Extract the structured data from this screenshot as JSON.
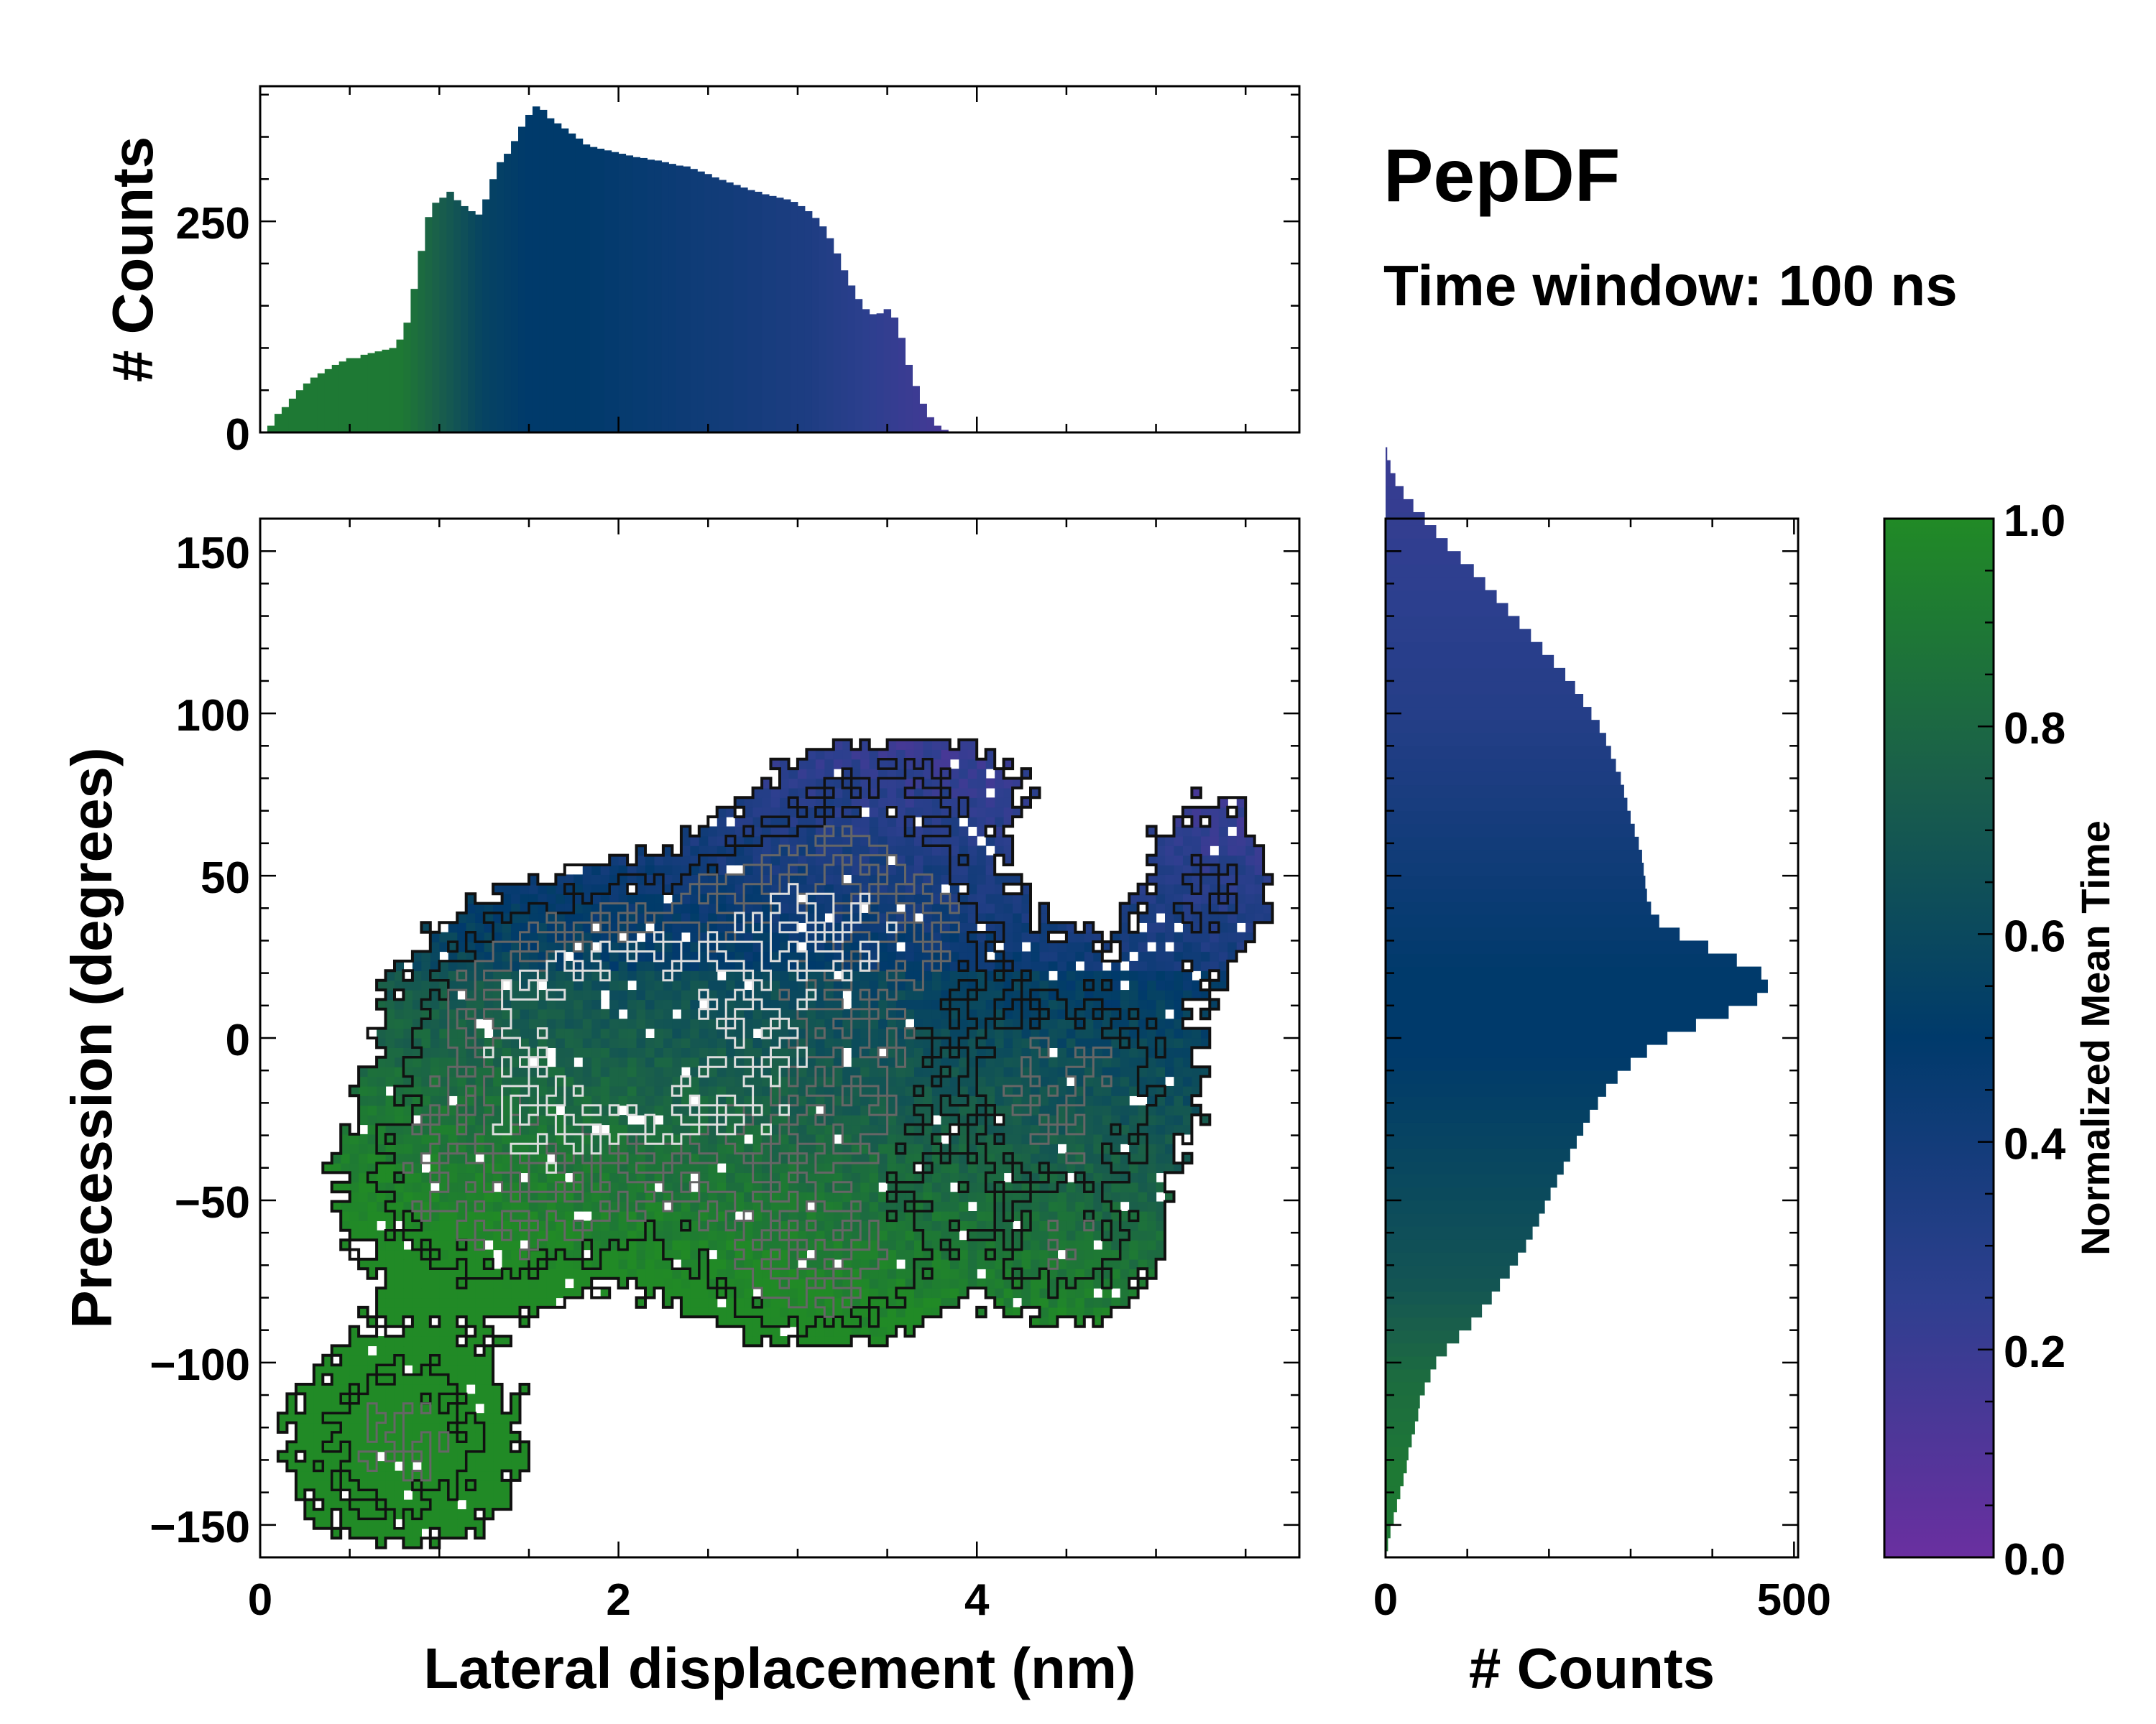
{
  "figure": {
    "title": "PepDF",
    "subtitle": "Time window: 100 ns"
  },
  "colors": {
    "cmap_low": "#6a2fa0",
    "cmap_q1": "#2e3f8f",
    "cmap_mid": "#003a6b",
    "cmap_q3": "#1a5f4a",
    "cmap_high": "#218a26",
    "contour_dark": "#111111",
    "contour_mid": "#666666",
    "contour_light": "#dddddd"
  },
  "chart_data": [
    {
      "id": "top-histogram",
      "type": "bar",
      "title": "",
      "xlabel": "",
      "ylabel": "# Counts",
      "xlim": [
        0,
        5.8
      ],
      "ylim": [
        0,
        410
      ],
      "yticks": [
        0,
        250
      ],
      "ytick_labels": [
        "0",
        "250"
      ],
      "bin_width": 0.04,
      "bin_start": 0.04,
      "values": [
        8,
        22,
        30,
        40,
        50,
        58,
        65,
        70,
        75,
        80,
        84,
        88,
        88,
        92,
        94,
        96,
        98,
        100,
        110,
        130,
        170,
        215,
        255,
        272,
        278,
        285,
        275,
        268,
        262,
        258,
        276,
        300,
        320,
        330,
        345,
        362,
        376,
        386,
        382,
        372,
        366,
        360,
        354,
        348,
        341,
        338,
        336,
        334,
        332,
        330,
        328,
        326,
        325,
        323,
        322,
        320,
        318,
        316,
        315,
        312,
        309,
        306,
        302,
        299,
        296,
        293,
        290,
        287,
        285,
        282,
        280,
        278,
        276,
        273,
        268,
        262,
        254,
        244,
        230,
        212,
        192,
        174,
        158,
        146,
        140,
        141,
        146,
        136,
        112,
        80,
        55,
        34,
        18,
        8,
        3
      ],
      "color_values": [
        0.9,
        0.9,
        0.9,
        0.9,
        0.9,
        0.9,
        0.9,
        0.9,
        0.9,
        0.9,
        0.9,
        0.9,
        0.9,
        0.9,
        0.9,
        0.9,
        0.9,
        0.9,
        0.9,
        0.88,
        0.85,
        0.82,
        0.79,
        0.76,
        0.73,
        0.7,
        0.67,
        0.64,
        0.61,
        0.58,
        0.56,
        0.55,
        0.54,
        0.53,
        0.52,
        0.51,
        0.5,
        0.5,
        0.5,
        0.5,
        0.5,
        0.5,
        0.5,
        0.5,
        0.5,
        0.49,
        0.49,
        0.48,
        0.48,
        0.47,
        0.47,
        0.46,
        0.46,
        0.45,
        0.45,
        0.44,
        0.44,
        0.43,
        0.43,
        0.42,
        0.42,
        0.41,
        0.41,
        0.4,
        0.4,
        0.39,
        0.39,
        0.38,
        0.38,
        0.37,
        0.37,
        0.36,
        0.36,
        0.35,
        0.35,
        0.34,
        0.33,
        0.32,
        0.31,
        0.3,
        0.29,
        0.28,
        0.27,
        0.26,
        0.25,
        0.24,
        0.23,
        0.22,
        0.21,
        0.2,
        0.19,
        0.18,
        0.17,
        0.16,
        0.15
      ]
    },
    {
      "id": "main-heatmap",
      "type": "heatmap",
      "title": "",
      "xlabel": "Lateral displacement (nm)",
      "ylabel": "Precession (degrees)",
      "xlim": [
        0,
        5.8
      ],
      "ylim": [
        -160,
        160
      ],
      "xticks": [
        0,
        2,
        4
      ],
      "xtick_labels": [
        "0",
        "2",
        "4"
      ],
      "yticks": [
        150,
        100,
        50,
        0,
        -50,
        -100,
        -150
      ],
      "ytick_labels": [
        "150",
        "100",
        "50",
        "0",
        "−50",
        "−100",
        "−150"
      ],
      "colorbar_label": "Normalized Mean Time",
      "density_clusters": [
        {
          "x": 1.9,
          "y": 8,
          "sx": 0.6,
          "sy": 22,
          "w": 1.0
        },
        {
          "x": 3.2,
          "y": 38,
          "sx": 0.55,
          "sy": 18,
          "w": 0.8
        },
        {
          "x": 2.7,
          "y": -18,
          "sx": 0.8,
          "sy": 28,
          "w": 0.7
        },
        {
          "x": 1.3,
          "y": -45,
          "sx": 0.55,
          "sy": 24,
          "w": 0.55
        },
        {
          "x": 3.1,
          "y": -72,
          "sx": 0.45,
          "sy": 15,
          "w": 0.55
        },
        {
          "x": 4.6,
          "y": -15,
          "sx": 0.45,
          "sy": 28,
          "w": 0.45
        },
        {
          "x": 5.3,
          "y": 48,
          "sx": 0.3,
          "sy": 22,
          "w": 0.3
        },
        {
          "x": 0.8,
          "y": -125,
          "sx": 0.45,
          "sy": 22,
          "w": 0.5
        },
        {
          "x": 4.5,
          "y": -68,
          "sx": 0.35,
          "sy": 15,
          "w": 0.35
        },
        {
          "x": 3.6,
          "y": 78,
          "sx": 0.6,
          "sy": 12,
          "w": 0.3
        }
      ]
    },
    {
      "id": "right-histogram",
      "type": "bar",
      "orientation": "horizontal",
      "title": "",
      "xlabel": "# Counts",
      "ylabel": "",
      "xlim": [
        0,
        505
      ],
      "ylim": [
        -160,
        160
      ],
      "xticks": [
        0,
        500
      ],
      "xtick_labels": [
        "0",
        "500"
      ],
      "bin_width": 4,
      "bin_start": -158,
      "values": [
        3,
        6,
        10,
        14,
        18,
        22,
        26,
        28,
        32,
        36,
        40,
        42,
        48,
        55,
        62,
        75,
        90,
        105,
        118,
        130,
        140,
        152,
        162,
        172,
        180,
        188,
        195,
        202,
        210,
        218,
        226,
        234,
        242,
        250,
        260,
        270,
        284,
        300,
        320,
        345,
        380,
        420,
        455,
        468,
        460,
        430,
        395,
        360,
        335,
        325,
        320,
        318,
        316,
        314,
        310,
        305,
        300,
        296,
        292,
        288,
        282,
        276,
        270,
        262,
        252,
        242,
        232,
        220,
        206,
        192,
        178,
        164,
        150,
        136,
        122,
        108,
        92,
        76,
        62,
        48,
        34,
        22,
        12,
        6,
        2
      ],
      "color_values": [
        0.9,
        0.9,
        0.9,
        0.9,
        0.9,
        0.9,
        0.9,
        0.88,
        0.87,
        0.86,
        0.85,
        0.84,
        0.83,
        0.82,
        0.8,
        0.78,
        0.76,
        0.74,
        0.72,
        0.7,
        0.68,
        0.67,
        0.66,
        0.65,
        0.64,
        0.63,
        0.62,
        0.61,
        0.6,
        0.59,
        0.58,
        0.57,
        0.56,
        0.55,
        0.54,
        0.53,
        0.52,
        0.51,
        0.5,
        0.5,
        0.5,
        0.5,
        0.5,
        0.5,
        0.5,
        0.49,
        0.48,
        0.47,
        0.46,
        0.45,
        0.44,
        0.43,
        0.42,
        0.41,
        0.4,
        0.39,
        0.38,
        0.37,
        0.36,
        0.35,
        0.34,
        0.33,
        0.32,
        0.31,
        0.3,
        0.3,
        0.29,
        0.29,
        0.28,
        0.28,
        0.27,
        0.27,
        0.26,
        0.26,
        0.25,
        0.25,
        0.24,
        0.24,
        0.23,
        0.23,
        0.22,
        0.22,
        0.21,
        0.21,
        0.2
      ]
    },
    {
      "id": "colorbar",
      "type": "colorbar",
      "label": "Normalized Mean Time",
      "range": [
        0,
        1
      ],
      "ticks": [
        0.0,
        0.2,
        0.4,
        0.6,
        0.8,
        1.0
      ],
      "tick_labels": [
        "0.0",
        "0.2",
        "0.4",
        "0.6",
        "0.8",
        "1.0"
      ]
    }
  ]
}
